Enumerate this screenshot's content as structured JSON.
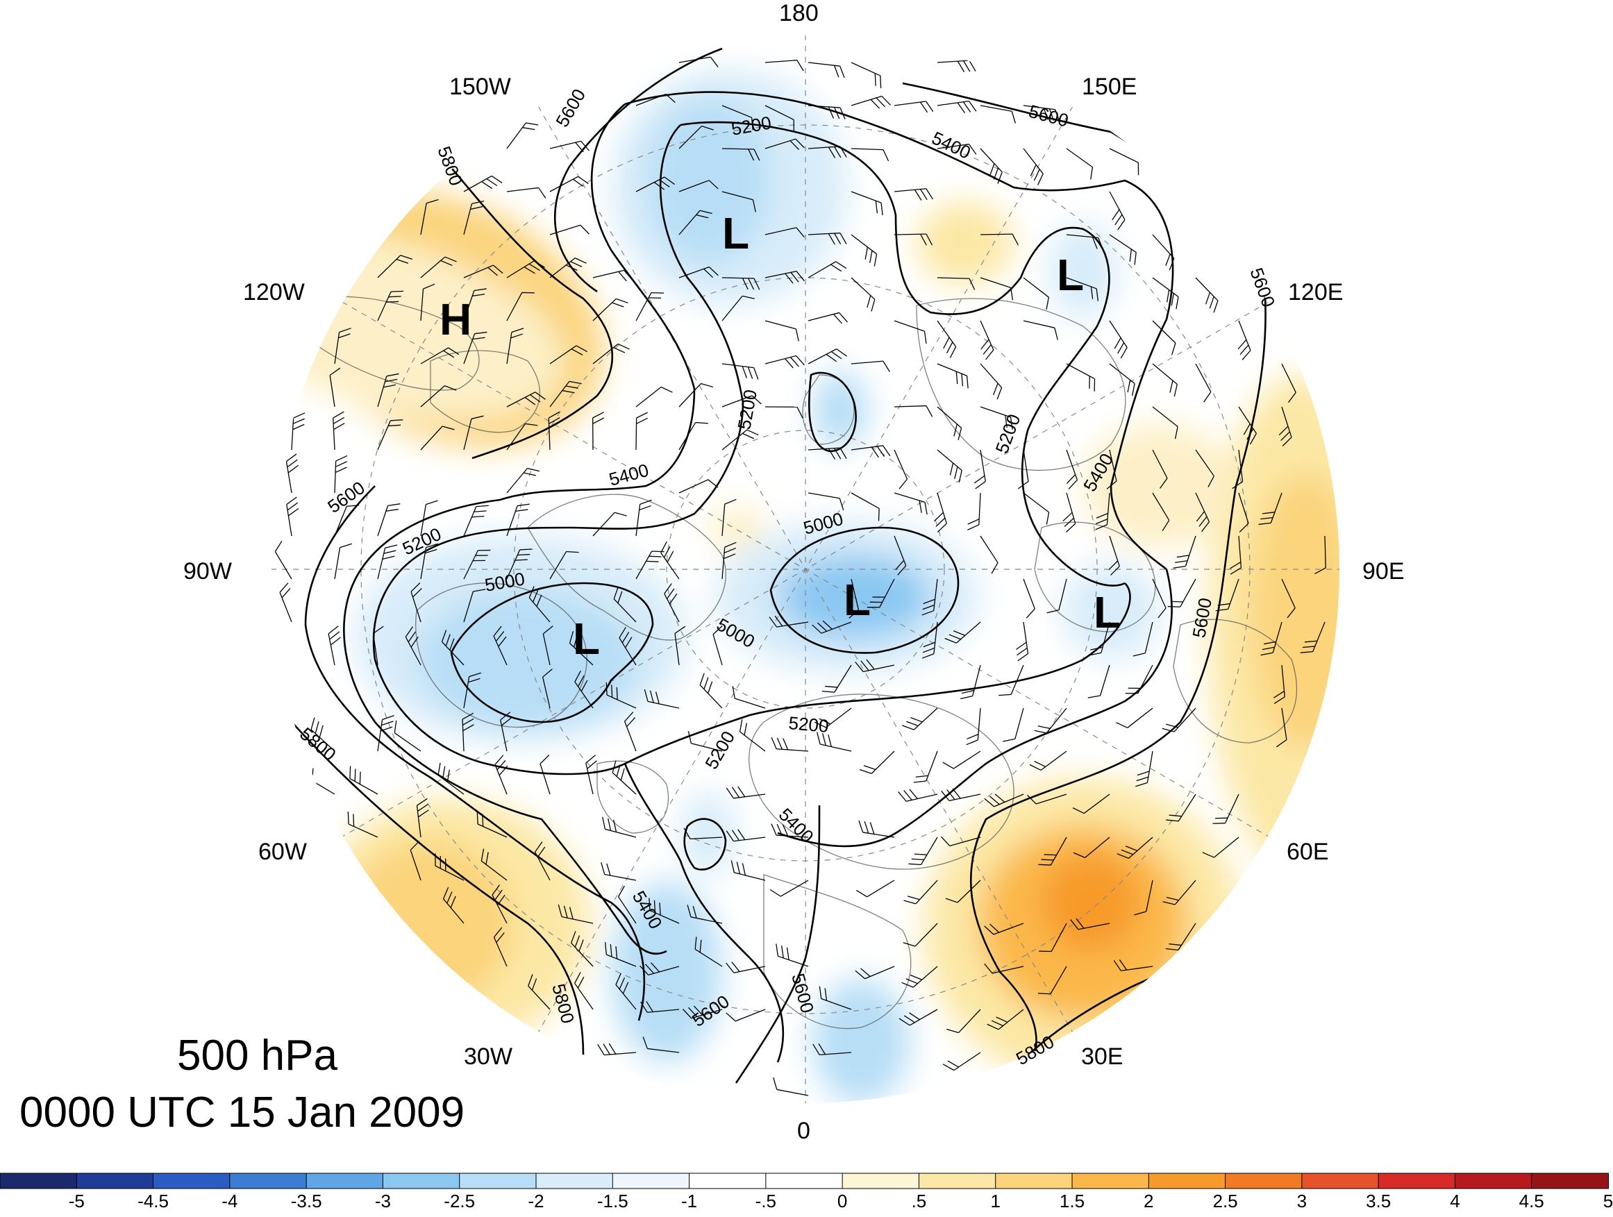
{
  "title": {
    "level": "500 hPa",
    "time": "0000 UTC 15 Jan 2009"
  },
  "longitude_labels": [
    "180",
    "150E",
    "120E",
    "90E",
    "60E",
    "30E",
    "0",
    "30W",
    "60W",
    "90W",
    "120W",
    "150W"
  ],
  "contour_labels": [
    "5000",
    "5200",
    "5400",
    "5600",
    "5800"
  ],
  "pressure_centers": [
    "H",
    "L"
  ],
  "colorbar": {
    "labels": [
      "-5",
      "-4.5",
      "-4",
      "-3.5",
      "-3",
      "-2.5",
      "-2",
      "-1.5",
      "-1",
      "-.5",
      "0",
      ".5",
      "1",
      "1.5",
      "2",
      "2.5",
      "3",
      "3.5",
      "4",
      "4.5",
      "5"
    ],
    "colors": [
      "#1a2a6c",
      "#1f3c96",
      "#2a5cc4",
      "#3b7dd2",
      "#5ea6e4",
      "#8ac8f2",
      "#b7def6",
      "#d8ecf9",
      "#eef6fc",
      "#ffffff",
      "#ffffff",
      "#fdf6d6",
      "#fce8a6",
      "#fbd47c",
      "#fbb84a",
      "#f79a2c",
      "#f27a22",
      "#e8522a",
      "#d82a26",
      "#b8191e",
      "#961416"
    ]
  }
}
